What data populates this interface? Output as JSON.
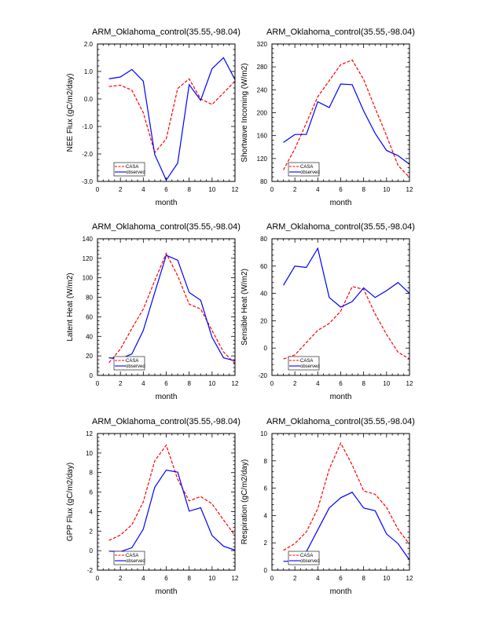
{
  "figure": {
    "legend_labels": [
      "CASA",
      "observed"
    ],
    "series_colors": {
      "CASA": "#ff0000",
      "observed": "#0000ff"
    }
  },
  "chart_data": [
    {
      "type": "line",
      "title": "ARM_Oklahoma_control(35.55,-98.04)",
      "xlabel": "month",
      "ylabel": "NEE Flux (gC/m2/day)",
      "xlim": [
        0,
        12
      ],
      "ylim": [
        -3.0,
        2.0
      ],
      "xticks": [
        0,
        2,
        4,
        6,
        8,
        10,
        12
      ],
      "xtick_labels": [
        "0",
        "2",
        "4",
        "6",
        "8",
        "10",
        "12"
      ],
      "yticks": [
        -3.0,
        -2.0,
        -1.0,
        0.0,
        1.0,
        2.0
      ],
      "ytick_labels": [
        "-3.0",
        "-2.0",
        "-1.0",
        "0.0",
        "1.0",
        "2.0"
      ],
      "legend": "bottom-left",
      "grid": false,
      "x": [
        1,
        2,
        3,
        4,
        5,
        6,
        7,
        8,
        9,
        10,
        11,
        12
      ],
      "series": [
        {
          "name": "CASA",
          "style": "dashed",
          "color": "#ff0000",
          "values": [
            0.45,
            0.5,
            0.32,
            -0.5,
            -1.95,
            -1.45,
            0.38,
            0.73,
            0.0,
            -0.2,
            0.22,
            0.65
          ]
        },
        {
          "name": "observed",
          "style": "solid",
          "color": "#0000ff",
          "values": [
            0.73,
            0.8,
            1.07,
            0.65,
            -2.02,
            -2.95,
            -2.33,
            0.52,
            -0.05,
            1.1,
            1.5,
            0.7
          ]
        }
      ]
    },
    {
      "type": "line",
      "title": "ARM_Oklahoma_control(35.55,-98.04)",
      "xlabel": "month",
      "ylabel": "Shortwave Incoming (W/m2)",
      "xlim": [
        0,
        12
      ],
      "ylim": [
        80,
        320
      ],
      "xticks": [
        0,
        2,
        4,
        6,
        8,
        10,
        12
      ],
      "xtick_labels": [
        "0",
        "2",
        "4",
        "6",
        "8",
        "10",
        "12"
      ],
      "yticks": [
        80,
        120,
        160,
        200,
        240,
        280,
        320
      ],
      "ytick_labels": [
        "80",
        "120",
        "160",
        "200",
        "240",
        "280",
        "320"
      ],
      "legend": "bottom-left",
      "grid": false,
      "x": [
        1,
        2,
        3,
        4,
        5,
        6,
        7,
        8,
        9,
        10,
        11,
        12
      ],
      "series": [
        {
          "name": "CASA",
          "style": "dashed",
          "color": "#ff0000",
          "values": [
            100,
            137,
            182,
            228,
            256,
            284,
            292,
            258,
            208,
            160,
            108,
            87
          ]
        },
        {
          "name": "observed",
          "style": "solid",
          "color": "#0000ff",
          "values": [
            148,
            162,
            162,
            219,
            209,
            250,
            249,
            203,
            164,
            134,
            125,
            110
          ]
        }
      ]
    },
    {
      "type": "line",
      "title": "ARM_Oklahoma_control(35.55,-98.04)",
      "xlabel": "month",
      "ylabel": "Latent Heat (W/m2)",
      "xlim": [
        0,
        12
      ],
      "ylim": [
        0,
        140
      ],
      "xticks": [
        0,
        2,
        4,
        6,
        8,
        10,
        12
      ],
      "xtick_labels": [
        "0",
        "2",
        "4",
        "6",
        "8",
        "10",
        "12"
      ],
      "yticks": [
        0,
        20,
        40,
        60,
        80,
        100,
        120,
        140
      ],
      "ytick_labels": [
        "0",
        "20",
        "40",
        "60",
        "80",
        "100",
        "120",
        "140"
      ],
      "legend": "bottom-left",
      "grid": false,
      "x": [
        1,
        2,
        3,
        4,
        5,
        6,
        7,
        8,
        9,
        10,
        11,
        12
      ],
      "series": [
        {
          "name": "CASA",
          "style": "dashed",
          "color": "#ff0000",
          "values": [
            13,
            27,
            48,
            68,
            97,
            125,
            102,
            73,
            68,
            46,
            24,
            12
          ]
        },
        {
          "name": "observed",
          "style": "solid",
          "color": "#0000ff",
          "values": [
            18,
            17,
            22,
            46,
            85,
            123,
            118,
            85,
            77,
            39,
            18,
            15
          ]
        }
      ]
    },
    {
      "type": "line",
      "title": "ARM_Oklahoma_control(35.55,-98.04)",
      "xlabel": "month",
      "ylabel": "Sensible Heat (W/m2)",
      "xlim": [
        0,
        12
      ],
      "ylim": [
        -20,
        80
      ],
      "xticks": [
        0,
        2,
        4,
        6,
        8,
        10,
        12
      ],
      "xtick_labels": [
        "0",
        "2",
        "4",
        "6",
        "8",
        "10",
        "12"
      ],
      "yticks": [
        -20,
        0,
        20,
        40,
        60,
        80
      ],
      "ytick_labels": [
        "-20",
        "0",
        "20",
        "40",
        "60",
        "80"
      ],
      "legend": "bottom-left",
      "grid": false,
      "x": [
        1,
        2,
        3,
        4,
        5,
        6,
        7,
        8,
        9,
        10,
        11,
        12
      ],
      "series": [
        {
          "name": "CASA",
          "style": "dashed",
          "color": "#ff0000",
          "values": [
            -8,
            -5,
            4,
            13,
            18,
            27,
            45,
            43,
            25,
            10,
            -3,
            -8
          ]
        },
        {
          "name": "observed",
          "style": "solid",
          "color": "#0000ff",
          "values": [
            46,
            60,
            59,
            73,
            37,
            30,
            34,
            44,
            37,
            42,
            48,
            40
          ]
        }
      ]
    },
    {
      "type": "line",
      "title": "ARM_Oklahoma_control(35.55,-98.04)",
      "xlabel": "month",
      "ylabel": "GPP Flux (gC/m2/day)",
      "xlim": [
        0,
        12
      ],
      "ylim": [
        -2,
        12
      ],
      "xticks": [
        0,
        2,
        4,
        6,
        8,
        10,
        12
      ],
      "xtick_labels": [
        "0",
        "2",
        "4",
        "6",
        "8",
        "10",
        "12"
      ],
      "yticks": [
        -2,
        0,
        2,
        4,
        6,
        8,
        10,
        12
      ],
      "ytick_labels": [
        "-2",
        "0",
        "2",
        "4",
        "6",
        "8",
        "10",
        "12"
      ],
      "legend": "bottom-left",
      "grid": false,
      "x": [
        1,
        2,
        3,
        4,
        5,
        6,
        7,
        8,
        9,
        10,
        11,
        12
      ],
      "series": [
        {
          "name": "CASA",
          "style": "dashed",
          "color": "#ff0000",
          "values": [
            1.05,
            1.6,
            2.65,
            5.0,
            9.2,
            10.8,
            7.3,
            5.1,
            5.55,
            4.8,
            3.15,
            1.55
          ]
        },
        {
          "name": "observed",
          "style": "solid",
          "color": "#0000ff",
          "values": [
            -0.05,
            -0.1,
            0.3,
            2.2,
            6.5,
            8.25,
            8.05,
            4.05,
            4.4,
            1.55,
            0.45,
            0.05
          ]
        }
      ]
    },
    {
      "type": "line",
      "title": "ARM_Oklahoma_control(35.55,-98.04)",
      "xlabel": "month",
      "ylabel": "Respiration (gC/m2/day)",
      "xlim": [
        0,
        12
      ],
      "ylim": [
        0,
        10
      ],
      "xticks": [
        0,
        2,
        4,
        6,
        8,
        10,
        12
      ],
      "xtick_labels": [
        "0",
        "2",
        "4",
        "6",
        "8",
        "10",
        "12"
      ],
      "yticks": [
        0,
        2,
        4,
        6,
        8,
        10
      ],
      "ytick_labels": [
        "0",
        "2",
        "4",
        "6",
        "8",
        "10"
      ],
      "legend": "bottom-left",
      "grid": false,
      "x": [
        1,
        2,
        3,
        4,
        5,
        6,
        7,
        8,
        9,
        10,
        11,
        12
      ],
      "series": [
        {
          "name": "CASA",
          "style": "dashed",
          "color": "#ff0000",
          "values": [
            1.45,
            1.95,
            2.8,
            4.5,
            7.4,
            9.3,
            7.7,
            5.8,
            5.55,
            4.6,
            3.0,
            1.9
          ]
        },
        {
          "name": "observed",
          "style": "solid",
          "color": "#0000ff",
          "values": [
            0.65,
            0.65,
            1.35,
            2.95,
            4.55,
            5.3,
            5.7,
            4.55,
            4.35,
            2.65,
            1.95,
            0.75
          ]
        }
      ]
    }
  ]
}
